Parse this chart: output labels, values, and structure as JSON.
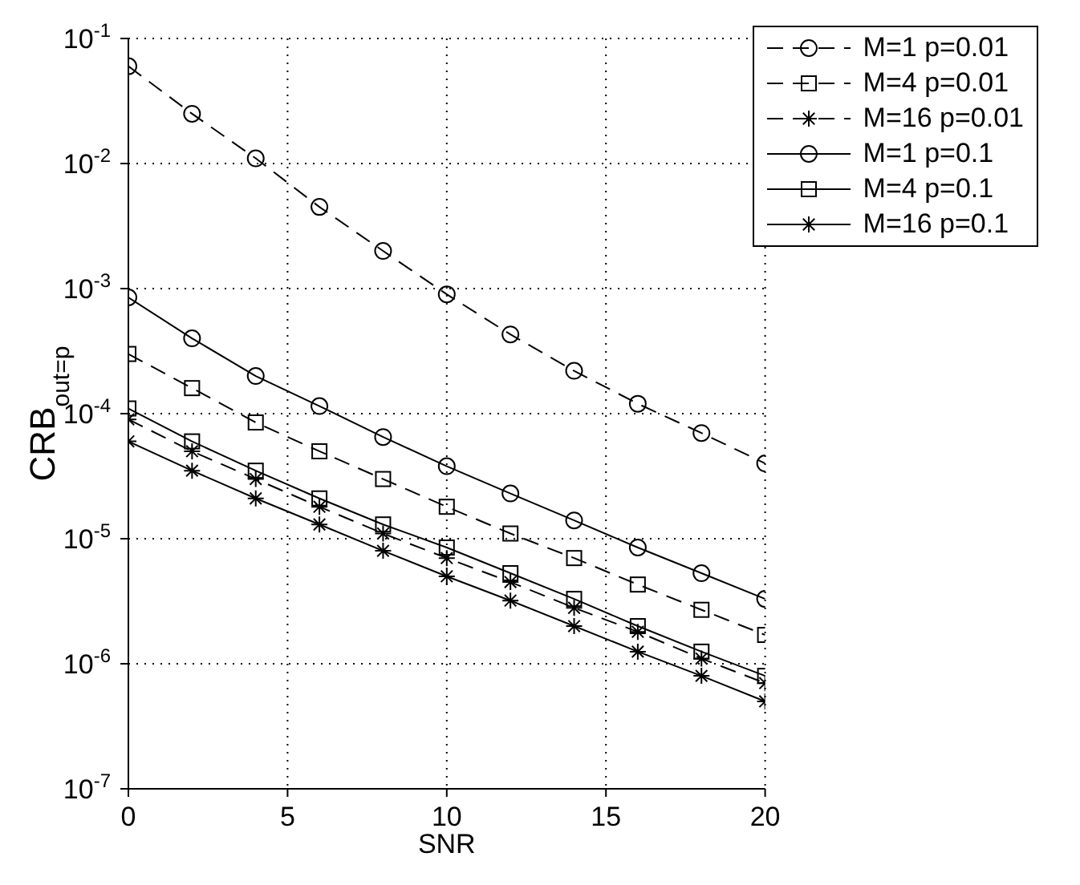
{
  "chart_data": {
    "type": "line",
    "xlabel": "SNR",
    "ylabel": "CRB$_{out=p}$",
    "log": "y",
    "grid": true,
    "legend": "top right",
    "x": [
      0,
      2,
      4,
      6,
      8,
      10,
      12,
      14,
      16,
      18,
      20
    ],
    "xlim": [
      0,
      20
    ],
    "xticks": [
      0,
      5,
      10,
      15,
      20
    ],
    "ylim": [
      1e-07,
      0.1
    ],
    "yticks": [
      {
        "value": 1e-07,
        "label": "10$^{-7}$"
      },
      {
        "value": 1e-06,
        "label": "10$^{-6}$"
      },
      {
        "value": 1e-05,
        "label": "10$^{-5}$"
      },
      {
        "value": 0.0001,
        "label": "10$^{-4}$"
      },
      {
        "value": 0.001,
        "label": "10$^{-3}$"
      },
      {
        "value": 0.01,
        "label": "10$^{-2}$"
      },
      {
        "value": 0.1,
        "label": "10$^{-1}$"
      }
    ],
    "series": [
      {
        "name": "M=1 p=0.01",
        "color": "#000000",
        "marker": "circle",
        "line_style": "dashed",
        "values": [
          0.06,
          0.025,
          0.011,
          0.0045,
          0.002,
          0.0009,
          0.00043,
          0.00022,
          0.00012,
          7e-05,
          4e-05
        ]
      },
      {
        "name": "M=4 p=0.01",
        "color": "#000000",
        "marker": "square",
        "line_style": "dashed",
        "values": [
          0.0003,
          0.00016,
          8.5e-05,
          5e-05,
          3e-05,
          1.8e-05,
          1.1e-05,
          7e-06,
          4.3e-06,
          2.7e-06,
          1.7e-06
        ]
      },
      {
        "name": "M=16 p=0.01",
        "color": "#000000",
        "marker": "cross",
        "line_style": "dashed",
        "values": [
          9e-05,
          5e-05,
          3e-05,
          1.8e-05,
          1.1e-05,
          7e-06,
          4.5e-06,
          2.8e-06,
          1.8e-06,
          1.1e-06,
          7e-07
        ]
      },
      {
        "name": "M=1 p=0.1",
        "color": "#000000",
        "marker": "circle",
        "line_style": "solid",
        "values": [
          0.00085,
          0.0004,
          0.0002,
          0.000115,
          6.5e-05,
          3.8e-05,
          2.3e-05,
          1.4e-05,
          8.5e-06,
          5.3e-06,
          3.3e-06
        ]
      },
      {
        "name": "M=4 p=0.1",
        "color": "#000000",
        "marker": "square",
        "line_style": "solid",
        "values": [
          0.00011,
          6e-05,
          3.5e-05,
          2.1e-05,
          1.3e-05,
          8.5e-06,
          5.3e-06,
          3.3e-06,
          2e-06,
          1.25e-06,
          8e-07
        ]
      },
      {
        "name": "M=16 p=0.1",
        "color": "#000000",
        "marker": "cross",
        "line_style": "solid",
        "values": [
          6e-05,
          3.5e-05,
          2.1e-05,
          1.3e-05,
          8e-06,
          5e-06,
          3.2e-06,
          2e-06,
          1.25e-06,
          8e-07,
          5e-07
        ]
      }
    ]
  }
}
